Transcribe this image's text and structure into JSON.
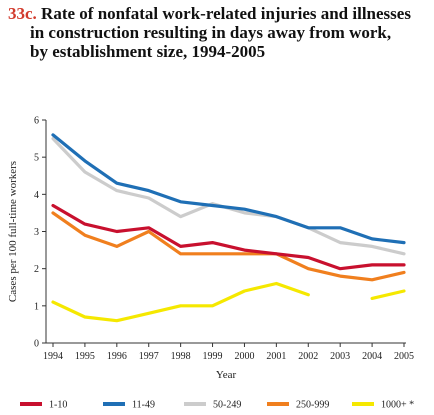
{
  "figure": {
    "number": "33c.",
    "title_lines": [
      "Rate of nonfatal work-related injuries and illnesses",
      "in construction resulting in days away from work,",
      "by establishment size, 1994-2005"
    ]
  },
  "chart_data": {
    "type": "line",
    "xlabel": "Year",
    "ylabel": "Cases per 100 full-time workers",
    "ylim": [
      0,
      6
    ],
    "yticks": [
      0,
      1,
      2,
      3,
      4,
      5,
      6
    ],
    "grid": false,
    "legend_position": "bottom",
    "x": [
      "1994",
      "1995",
      "1996",
      "1997",
      "1998",
      "1999",
      "2000",
      "2001",
      "2002",
      "2003",
      "2004",
      "2005"
    ],
    "series": [
      {
        "name": "1-10",
        "color": "#c8102e",
        "values": [
          3.7,
          3.2,
          3.0,
          3.1,
          2.6,
          2.7,
          2.5,
          2.4,
          2.3,
          2.0,
          2.1,
          2.1
        ]
      },
      {
        "name": "11-49",
        "color": "#1f6fb5",
        "values": [
          5.6,
          4.9,
          4.3,
          4.1,
          3.8,
          3.7,
          3.6,
          3.4,
          3.1,
          3.1,
          2.8,
          2.7
        ]
      },
      {
        "name": "50-249",
        "color": "#cccccc",
        "values": [
          5.5,
          4.6,
          4.1,
          3.9,
          3.4,
          3.75,
          3.5,
          3.4,
          3.1,
          2.7,
          2.6,
          2.4
        ]
      },
      {
        "name": "250-999",
        "color": "#f07f1e",
        "values": [
          3.5,
          2.9,
          2.6,
          3.0,
          2.4,
          2.4,
          2.4,
          2.4,
          2.0,
          1.8,
          1.7,
          1.9
        ]
      },
      {
        "name": "1000+ *",
        "color": "#f5e800",
        "values": [
          1.1,
          0.7,
          0.6,
          0.8,
          1.0,
          1.0,
          1.4,
          1.6,
          1.3,
          null,
          1.2,
          1.4
        ]
      }
    ]
  }
}
